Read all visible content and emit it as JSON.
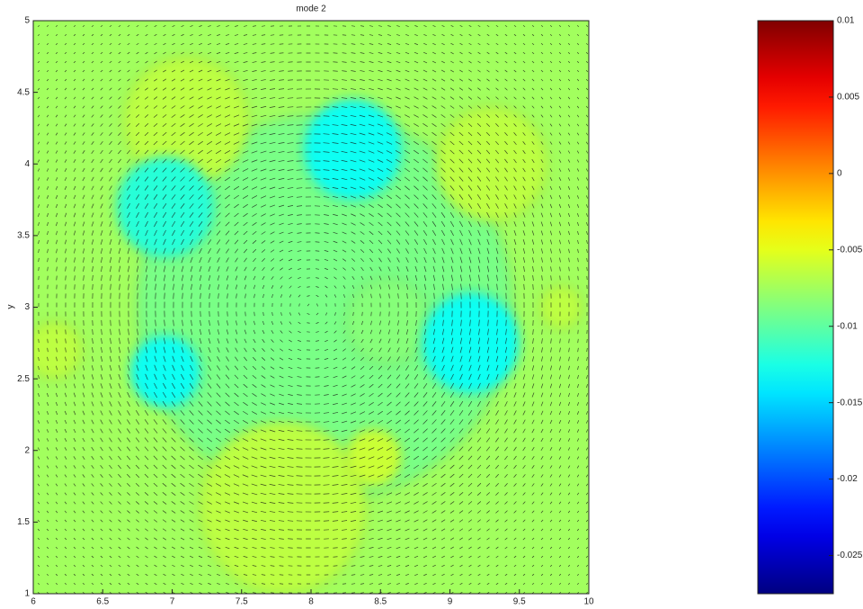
{
  "chart_data": {
    "type": "contour",
    "title": "mode 2",
    "y_label": "y",
    "xlim": [
      6,
      10
    ],
    "xticks": [
      6,
      6.5,
      7,
      7.5,
      8,
      8.5,
      9,
      9.5,
      10
    ],
    "ylim": [
      1,
      5
    ],
    "yticks": [
      1,
      1.5,
      2,
      2.5,
      3,
      3.5,
      4,
      4.5,
      5
    ],
    "background_value": -0.0075,
    "regions": [
      {
        "x": 8.1,
        "y": 3.0,
        "r": 1.35,
        "value": -0.009
      },
      {
        "x": 7.1,
        "y": 4.3,
        "r": 0.45,
        "value": -0.0065
      },
      {
        "x": 9.3,
        "y": 4.0,
        "r": 0.4,
        "value": -0.0065
      },
      {
        "x": 7.8,
        "y": 1.6,
        "r": 0.6,
        "value": -0.0065
      },
      {
        "x": 6.15,
        "y": 2.7,
        "r": 0.2,
        "value": -0.0065
      },
      {
        "x": 9.8,
        "y": 3.0,
        "r": 0.15,
        "value": -0.0065
      },
      {
        "x": 8.45,
        "y": 1.95,
        "r": 0.2,
        "value": -0.006
      },
      {
        "x": 8.55,
        "y": 2.9,
        "r": 0.3,
        "value": -0.0085
      },
      {
        "x": 8.3,
        "y": 4.1,
        "r": 0.35,
        "value": -0.013
      },
      {
        "x": 6.95,
        "y": 3.7,
        "r": 0.35,
        "value": -0.012
      },
      {
        "x": 9.15,
        "y": 2.75,
        "r": 0.35,
        "value": -0.013
      },
      {
        "x": 6.95,
        "y": 2.55,
        "r": 0.25,
        "value": -0.013
      }
    ],
    "colorbar_lim": [
      -0.0275,
      0.01
    ],
    "colorbar_ticks": [
      0.01,
      0.005,
      0,
      -0.005,
      -0.01,
      -0.015,
      -0.02,
      -0.025
    ]
  }
}
